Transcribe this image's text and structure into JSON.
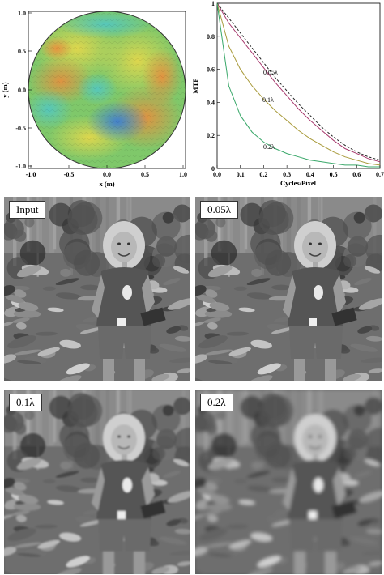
{
  "colors": {
    "mtf_diffraction": "#222222",
    "mtf_005": "#a83a6e",
    "mtf_01": "#a89a3a",
    "mtf_02": "#3aa86a"
  },
  "chart_data": [
    {
      "type": "heatmap",
      "xlabel": "x (m)",
      "ylabel": "y (m)",
      "xlim": [
        -1.0,
        1.0
      ],
      "ylim": [
        -1.0,
        1.0
      ],
      "xticks": [
        "-1.0",
        "-0.5",
        "0.0",
        "0.5",
        "1.0"
      ],
      "yticks": [
        "1.0",
        "0.5",
        "0.0",
        "-0.5",
        "-1.0"
      ],
      "aperture": "circular, radius 1.0 m",
      "colormap": "jet (blue low, red high)"
    },
    {
      "type": "line",
      "xlabel": "Cycles/Pixel",
      "ylabel": "MTF",
      "xlim": [
        0.0,
        0.7
      ],
      "ylim": [
        0.0,
        1.0
      ],
      "xticks": [
        "0.0",
        "0.1",
        "0.2",
        "0.3",
        "0.4",
        "0.5",
        "0.6",
        "0.7"
      ],
      "yticks": [
        "1",
        "0.8",
        "0.6",
        "0.4",
        "0.2",
        "0"
      ],
      "grid": false,
      "x": [
        0.0,
        0.05,
        0.1,
        0.15,
        0.2,
        0.25,
        0.3,
        0.35,
        0.4,
        0.45,
        0.5,
        0.55,
        0.6,
        0.65,
        0.7
      ],
      "series": [
        {
          "name": "",
          "style": "dashed",
          "values": [
            1.0,
            0.91,
            0.82,
            0.73,
            0.64,
            0.55,
            0.47,
            0.39,
            0.32,
            0.25,
            0.19,
            0.14,
            0.1,
            0.07,
            0.05
          ]
        },
        {
          "name": "0.05λ",
          "values": [
            1.0,
            0.88,
            0.79,
            0.7,
            0.61,
            0.52,
            0.44,
            0.36,
            0.29,
            0.23,
            0.17,
            0.12,
            0.09,
            0.06,
            0.04
          ]
        },
        {
          "name": "0.1λ",
          "values": [
            1.0,
            0.74,
            0.6,
            0.5,
            0.42,
            0.35,
            0.29,
            0.23,
            0.18,
            0.14,
            0.1,
            0.07,
            0.05,
            0.03,
            0.02
          ]
        },
        {
          "name": "0.2λ",
          "values": [
            1.0,
            0.5,
            0.32,
            0.22,
            0.16,
            0.12,
            0.09,
            0.07,
            0.05,
            0.04,
            0.03,
            0.02,
            0.02,
            0.01,
            0.01
          ]
        }
      ]
    }
  ],
  "photos": {
    "input_label": "Input",
    "p005_label": "0.05λ",
    "p01_label": "0.1λ",
    "p02_label": "0.2λ",
    "blur": {
      "input": 0,
      "p005": 0.3,
      "p01": 1.1,
      "p02": 2.0
    }
  }
}
